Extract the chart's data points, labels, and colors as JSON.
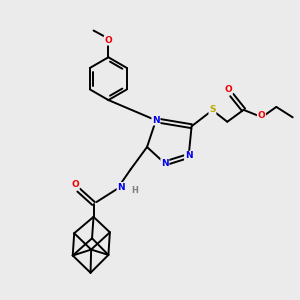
{
  "background_color": "#ebebeb",
  "figsize": [
    3.0,
    3.0
  ],
  "dpi": 100,
  "atom_colors": {
    "C": "#000000",
    "N": "#0000ee",
    "O": "#ee0000",
    "S": "#bbaa00",
    "H": "#808080"
  },
  "bond_color": "#000000",
  "bond_width": 1.4,
  "font_size": 6.5
}
